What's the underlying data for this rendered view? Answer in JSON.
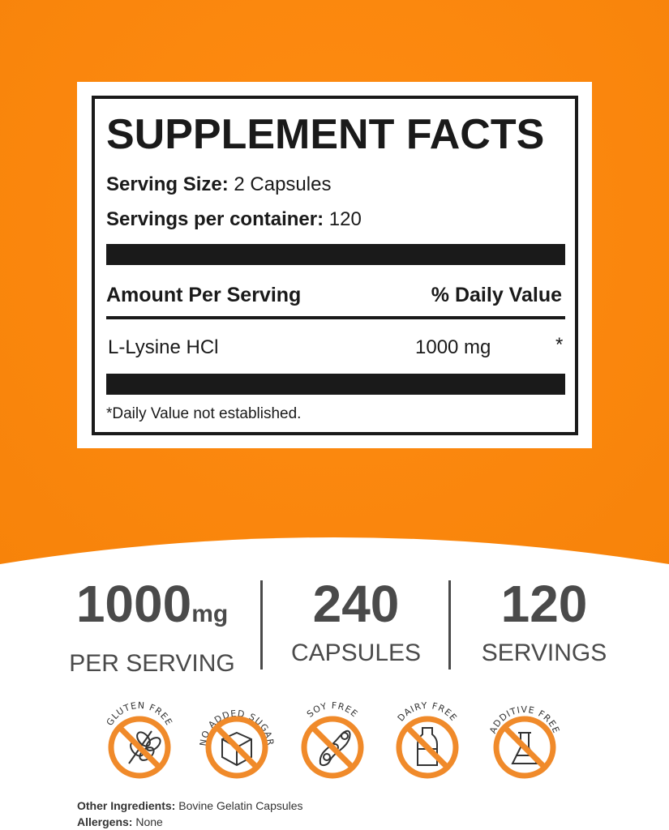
{
  "colors": {
    "orange": "#f7860c",
    "icon_orange": "#f08a2a",
    "dark": "#1a1a1a",
    "gray": "#4a4a4a"
  },
  "facts": {
    "title": "SUPPLEMENT FACTS",
    "serving_size_label": "Serving Size:",
    "serving_size_value": "2 Capsules",
    "servings_label": "Servings per container:",
    "servings_value": "120",
    "amount_header": "Amount Per Serving",
    "dv_header": "% Daily Value",
    "ingredients": [
      {
        "name": "L-Lysine HCl",
        "amount": "1000 mg",
        "dv": "*"
      }
    ],
    "footnote": "*Daily Value not established."
  },
  "stats": [
    {
      "value": "1000",
      "unit": "mg",
      "label": "PER SERVING"
    },
    {
      "value": "240",
      "label": "CAPSULES"
    },
    {
      "value": "120",
      "label": "SERVINGS"
    }
  ],
  "badges": [
    {
      "label": "GLUTEN FREE",
      "icon": "wheat-icon"
    },
    {
      "label": "NO ADDED SUGAR",
      "icon": "sugar-cube-icon"
    },
    {
      "label": "SOY FREE",
      "icon": "soybean-icon"
    },
    {
      "label": "DAIRY FREE",
      "icon": "milk-bottle-icon"
    },
    {
      "label": "ADDITIVE FREE",
      "icon": "flask-icon"
    }
  ],
  "footer": {
    "other_label": "Other Ingredients:",
    "other_value": "Bovine Gelatin Capsules",
    "allergens_label": "Allergens:",
    "allergens_value": "None"
  }
}
